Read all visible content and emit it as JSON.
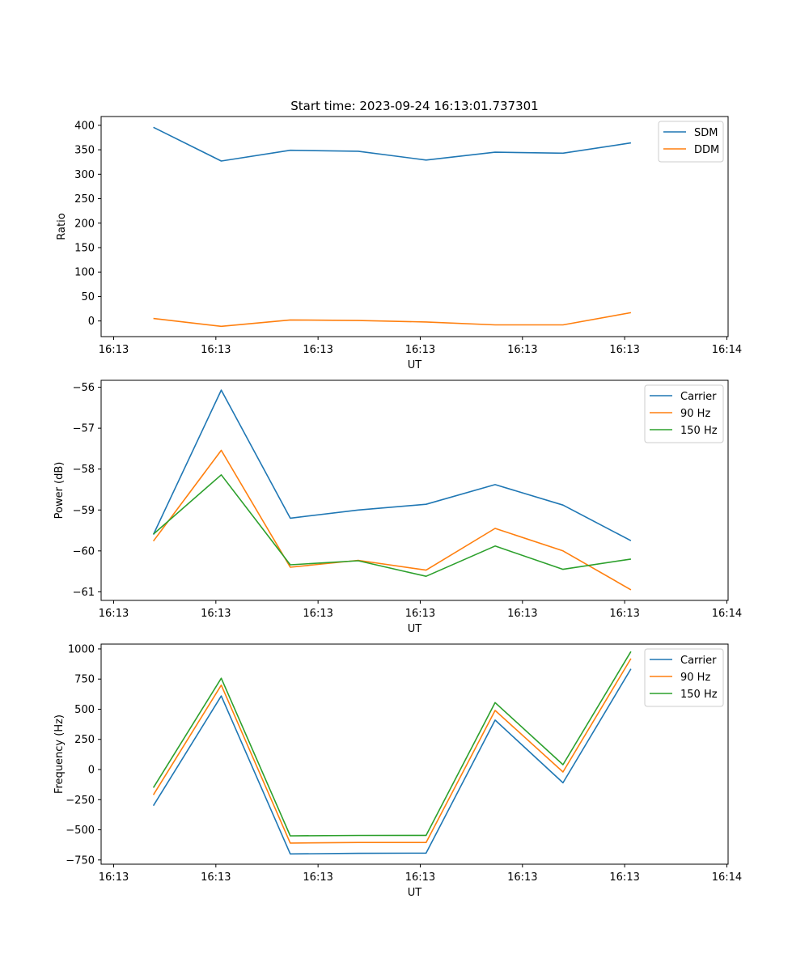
{
  "chart_data": [
    {
      "type": "line",
      "title": "Start time: 2023-09-24 16:13:01.737301",
      "xlabel": "UT",
      "ylabel": "Ratio",
      "xticks": [
        "16:13",
        "16:13",
        "16:13",
        "16:13",
        "16:13",
        "16:13",
        "16:14"
      ],
      "yticks": [
        0,
        50,
        100,
        150,
        200,
        250,
        300,
        350,
        400
      ],
      "ytick_labels": [
        "0",
        "50",
        "100",
        "150",
        "200",
        "250",
        "300",
        "350",
        "400"
      ],
      "xlim": [
        0,
        6
      ],
      "ylim": [
        -32,
        418
      ],
      "x": [
        0.5,
        1.15,
        1.81,
        2.46,
        3.11,
        3.77,
        4.42,
        5.07
      ],
      "legend_position": "top-right",
      "series": [
        {
          "name": "SDM",
          "color": "#1f77b4",
          "values": [
            396,
            327,
            349,
            347,
            329,
            345,
            343,
            364
          ]
        },
        {
          "name": "DDM",
          "color": "#ff7f0e",
          "values": [
            5,
            -11,
            2,
            1,
            -2,
            -8,
            -8,
            17
          ]
        }
      ]
    },
    {
      "type": "line",
      "title": "",
      "xlabel": "UT",
      "ylabel": "Power (dB)",
      "xticks": [
        "16:13",
        "16:13",
        "16:13",
        "16:13",
        "16:13",
        "16:13",
        "16:14"
      ],
      "yticks": [
        -61,
        -60,
        -59,
        -58,
        -57,
        -56
      ],
      "ytick_labels": [
        "−61",
        "−60",
        "−59",
        "−58",
        "−57",
        "−56"
      ],
      "xlim": [
        0,
        6
      ],
      "ylim": [
        -61.21,
        -55.83
      ],
      "x": [
        0.5,
        1.15,
        1.81,
        2.46,
        3.11,
        3.77,
        4.42,
        5.07
      ],
      "legend_position": "top-right",
      "series": [
        {
          "name": "Carrier",
          "color": "#1f77b4",
          "values": [
            -59.6,
            -56.07,
            -59.2,
            -59.0,
            -58.86,
            -58.38,
            -58.88,
            -59.75
          ]
        },
        {
          "name": "90 Hz",
          "color": "#ff7f0e",
          "values": [
            -59.76,
            -57.54,
            -60.4,
            -60.23,
            -60.47,
            -59.45,
            -60.0,
            -60.95
          ]
        },
        {
          "name": "150 Hz",
          "color": "#2ca02c",
          "values": [
            -59.59,
            -58.14,
            -60.34,
            -60.24,
            -60.62,
            -59.88,
            -60.45,
            -60.2
          ]
        }
      ]
    },
    {
      "type": "line",
      "title": "",
      "xlabel": "UT",
      "ylabel": "Frequency (Hz)",
      "xticks": [
        "16:13",
        "16:13",
        "16:13",
        "16:13",
        "16:13",
        "16:13",
        "16:14"
      ],
      "yticks": [
        -750,
        -500,
        -250,
        0,
        250,
        500,
        750,
        1000
      ],
      "ytick_labels": [
        "−750",
        "−500",
        "−250",
        "0",
        "250",
        "500",
        "750",
        "1000"
      ],
      "xlim": [
        0,
        6
      ],
      "ylim": [
        -785,
        1040
      ],
      "x": [
        0.5,
        1.15,
        1.81,
        2.46,
        3.11,
        3.77,
        4.42,
        5.07
      ],
      "legend_position": "top-right",
      "series": [
        {
          "name": "Carrier",
          "color": "#1f77b4",
          "values": [
            -300,
            610,
            -700,
            -695,
            -693,
            410,
            -110,
            835
          ]
        },
        {
          "name": "90 Hz",
          "color": "#ff7f0e",
          "values": [
            -210,
            700,
            -610,
            -605,
            -605,
            490,
            -20,
            920
          ]
        },
        {
          "name": "150 Hz",
          "color": "#2ca02c",
          "values": [
            -150,
            757,
            -550,
            -547,
            -546,
            555,
            40,
            978
          ]
        }
      ]
    }
  ]
}
